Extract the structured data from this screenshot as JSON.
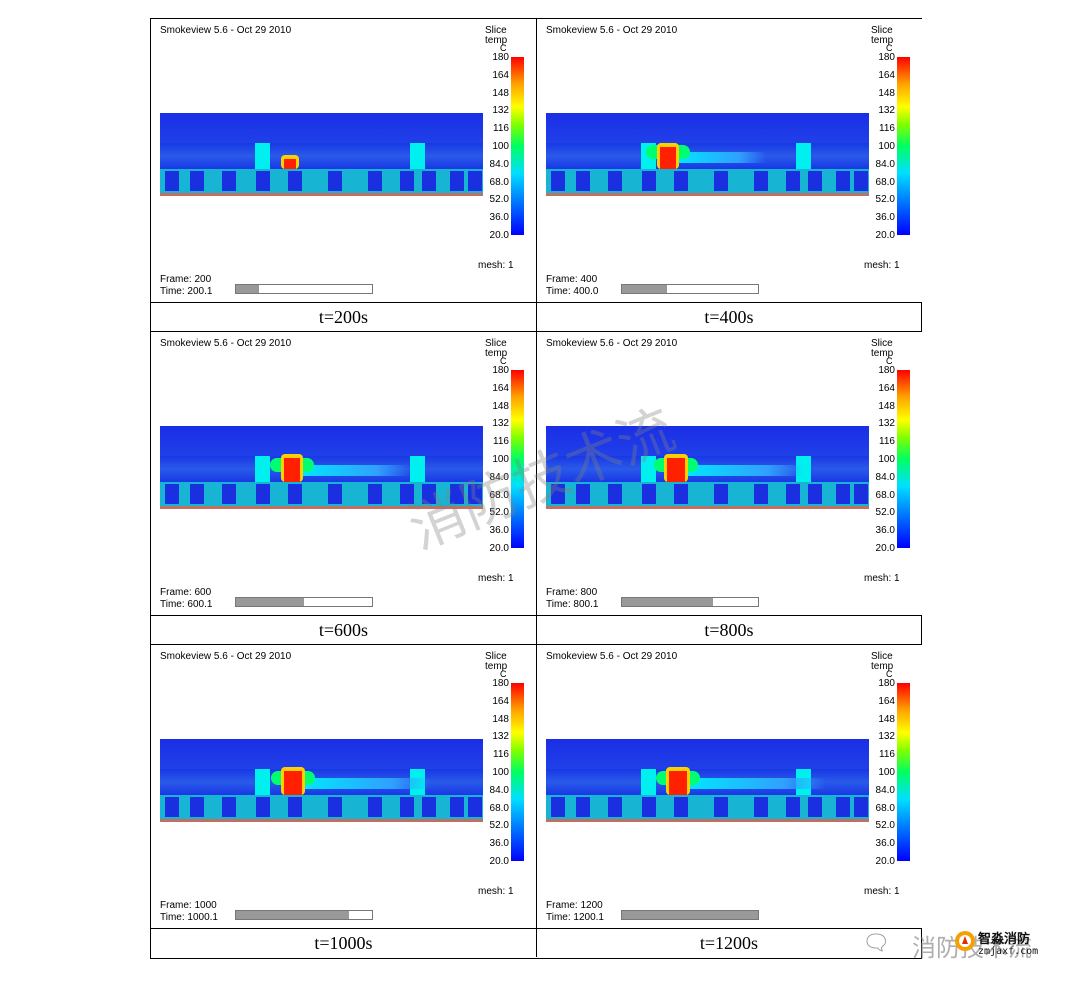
{
  "panels": [
    {
      "title": "Smokeview 5.6 - Oct 29 2010",
      "frame": "Frame: 200",
      "time": "Time: 200.1",
      "progress": 0.167,
      "caption": "t=200s"
    },
    {
      "title": "Smokeview 5.6 - Oct 29 2010",
      "frame": "Frame: 400",
      "time": "Time: 400.0",
      "progress": 0.333,
      "caption": "t=400s"
    },
    {
      "title": "Smokeview 5.6 - Oct 29 2010",
      "frame": "Frame: 600",
      "time": "Time: 600.1",
      "progress": 0.5,
      "caption": "t=600s"
    },
    {
      "title": "Smokeview 5.6 - Oct 29 2010",
      "frame": "Frame: 800",
      "time": "Time: 800.1",
      "progress": 0.667,
      "caption": "t=800s"
    },
    {
      "title": "Smokeview 5.6 - Oct 29 2010",
      "frame": "Frame: 1000",
      "time": "Time: 1000.1",
      "progress": 0.833,
      "caption": "t=1000s"
    },
    {
      "title": "Smokeview 5.6 - Oct 29 2010",
      "frame": "Frame: 1200",
      "time": "Time: 1200.1",
      "progress": 1.0,
      "caption": "t=1200s"
    }
  ],
  "legend": {
    "slice": "Slice",
    "quantity": "temp",
    "unit": "C",
    "ticks": [
      "180",
      "164",
      "148",
      "132",
      "116",
      "100",
      "84.0",
      "68.0",
      "52.0",
      "36.0",
      "20.0"
    ],
    "mesh": "mesh: 1"
  },
  "watermark": "消防技术流",
  "brand": {
    "channel": "消防技术流",
    "name": "智淼消防",
    "url": "zmjaxf.com"
  },
  "colors": {
    "hot": "#ff2000",
    "warm": "#ffd000",
    "cyan": "#00f0f0",
    "blue": "#1a30e0"
  }
}
